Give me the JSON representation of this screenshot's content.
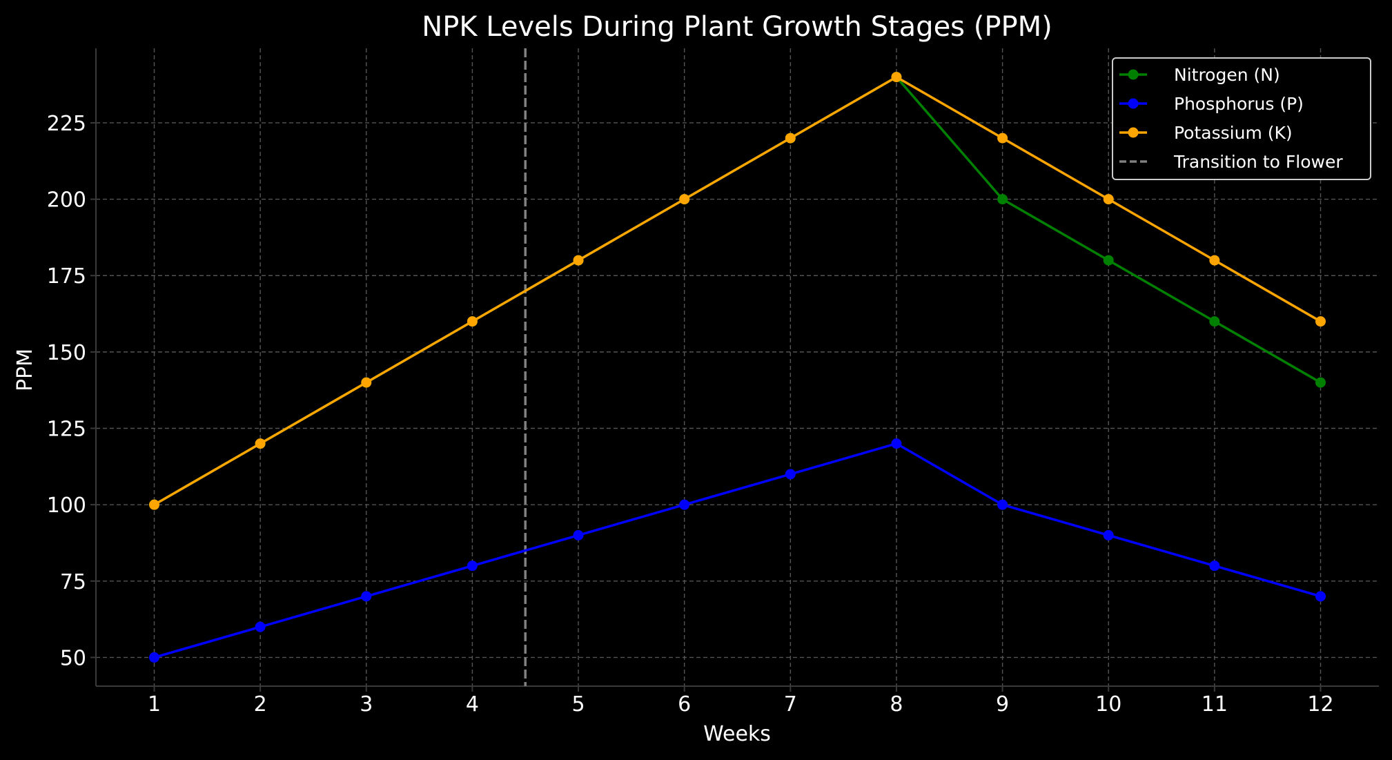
{
  "chart_data": {
    "type": "line",
    "title": "NPK Levels During Plant Growth Stages (PPM)",
    "xlabel": "Weeks",
    "ylabel": "PPM",
    "x": [
      1,
      2,
      3,
      4,
      5,
      6,
      7,
      8,
      9,
      10,
      11,
      12
    ],
    "xlim": [
      0.45,
      12.55
    ],
    "ylim": [
      40.6,
      249.4
    ],
    "yticks": [
      50,
      75,
      100,
      125,
      150,
      175,
      200,
      225
    ],
    "grid": true,
    "legend_position": "top-right",
    "series": [
      {
        "name": "Nitrogen (N)",
        "color": "#008000",
        "marker": "circle",
        "values": [
          100,
          120,
          140,
          160,
          180,
          200,
          220,
          240,
          200,
          180,
          160,
          140
        ]
      },
      {
        "name": "Phosphorus (P)",
        "color": "#0000ff",
        "marker": "circle",
        "values": [
          50,
          60,
          70,
          80,
          90,
          100,
          110,
          120,
          100,
          90,
          80,
          70
        ]
      },
      {
        "name": "Potassium (K)",
        "color": "#ffa500",
        "marker": "circle",
        "values": [
          100,
          120,
          140,
          160,
          180,
          200,
          220,
          240,
          220,
          200,
          180,
          160
        ]
      }
    ],
    "annotations": [
      {
        "type": "vline",
        "x": 4.5,
        "label": "Transition to Flower",
        "color": "#808080",
        "style": "dashed"
      }
    ]
  }
}
